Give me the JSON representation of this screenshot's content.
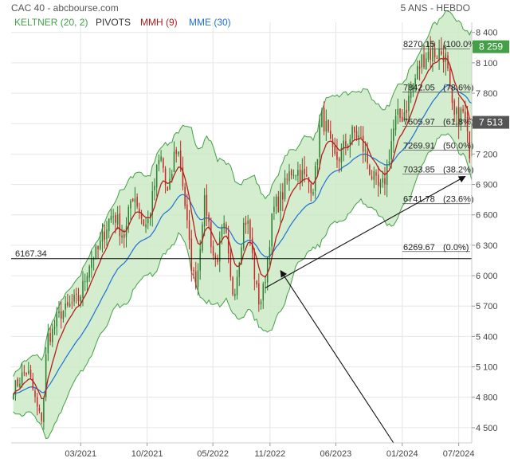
{
  "header": {
    "title": "CAC 40 - abcbourse.com",
    "period": "5 ANS - HEBDO"
  },
  "legend": [
    {
      "label": "KELTNER (20, 2)",
      "color": "#43a047"
    },
    {
      "label": "PIVOTS",
      "color": "#333333"
    },
    {
      "label": "MMH (9)",
      "color": "#b71c1c"
    },
    {
      "label": "MME (30)",
      "color": "#1e6fd9"
    }
  ],
  "colors": {
    "keltner_fill": "#cdeac6",
    "keltner_line": "#43a047",
    "candle_up": "#2e7d32",
    "candle_down": "#c62828",
    "mmh": "#b71c1c",
    "mme": "#1e6fd9",
    "price_tag": "#43a047",
    "current_tag": "#555555",
    "grid": "#e6e6e6",
    "line": "#111111"
  },
  "chart_data": {
    "type": "candlestick",
    "instrument": "CAC 40",
    "timeframe": "weekly",
    "ylim": [
      4350,
      8500
    ],
    "y_ticks": [
      4500,
      4800,
      5100,
      5400,
      5700,
      6000,
      6300,
      6600,
      6900,
      7200,
      7500,
      7800,
      8100,
      8400
    ],
    "y_tick_labels": [
      "4 500",
      "4 800",
      "5 100",
      "5 400",
      "5 700",
      "6 000",
      "6 300",
      "6 600",
      "6 900",
      "7 200",
      "7 500",
      "7 800",
      "8 100",
      "8 400"
    ],
    "x_tick_labels": [
      "03/2021",
      "10/2021",
      "05/2022",
      "11/2022",
      "06/2023",
      "01/2024",
      "07/2024"
    ],
    "x_tick_dates": [
      "2021-03-01",
      "2021-10-01",
      "2022-05-01",
      "2022-11-01",
      "2023-06-01",
      "2024-01-01",
      "2024-07-01"
    ],
    "x_range": [
      "2020-07-20",
      "2024-08-12"
    ],
    "price_path": [
      [
        "2020-07-27",
        4900
      ],
      [
        "2020-09-07",
        5050
      ],
      [
        "2020-10-26",
        4600
      ],
      [
        "2020-11-16",
        5400
      ],
      [
        "2021-01-04",
        5650
      ],
      [
        "2021-02-15",
        5750
      ],
      [
        "2021-04-12",
        6200
      ],
      [
        "2021-06-14",
        6600
      ],
      [
        "2021-07-19",
        6400
      ],
      [
        "2021-08-16",
        6800
      ],
      [
        "2021-09-27",
        6500
      ],
      [
        "2021-11-15",
        7150
      ],
      [
        "2021-12-06",
        6800
      ],
      [
        "2022-01-03",
        7250
      ],
      [
        "2022-03-07",
        5950
      ],
      [
        "2022-04-04",
        6700
      ],
      [
        "2022-05-09",
        6150
      ],
      [
        "2022-06-06",
        6450
      ],
      [
        "2022-07-04",
        5850
      ],
      [
        "2022-08-15",
        6550
      ],
      [
        "2022-09-29",
        5750
      ],
      [
        "2022-11-21",
        6700
      ],
      [
        "2023-01-16",
        7050
      ],
      [
        "2023-03-20",
        6900
      ],
      [
        "2023-04-17",
        7550
      ],
      [
        "2023-05-29",
        7150
      ],
      [
        "2023-07-31",
        7400
      ],
      [
        "2023-10-23",
        6850
      ],
      [
        "2023-12-18",
        7550
      ],
      [
        "2024-03-25",
        8200
      ],
      [
        "2024-05-13",
        8200
      ],
      [
        "2024-06-17",
        7550
      ],
      [
        "2024-07-15",
        7600
      ],
      [
        "2024-08-05",
        7250
      ],
      [
        "2024-08-12",
        7513
      ]
    ],
    "last_price": 7513,
    "last_price_label": "7 513",
    "high_price_label": "8 259",
    "pivot_level": 6167.34,
    "pivot_label": "6167.34",
    "fibonacci": [
      {
        "value": 8270.15,
        "label": "8270.15",
        "pct": "(100.0%)"
      },
      {
        "value": 7842.05,
        "label": "7842.05",
        "pct": "(78.6%)"
      },
      {
        "value": 7505.97,
        "label": "7505.97",
        "pct": "(61.8%)"
      },
      {
        "value": 7269.91,
        "label": "7269.91",
        "pct": "(50.0%)"
      },
      {
        "value": 7033.85,
        "label": "7033.85",
        "pct": "(38.2%)"
      },
      {
        "value": 6741.78,
        "label": "6741.78",
        "pct": "(23.6%)"
      },
      {
        "value": 6269.67,
        "label": "6269.67",
        "pct": "(0.0%)"
      }
    ],
    "trendline": {
      "from": [
        "2022-10-17",
        5880
      ],
      "to": [
        "2024-07-22",
        6980
      ]
    },
    "arrow": {
      "from": [
        "2023-12-04",
        4350
      ],
      "to": [
        "2022-12-05",
        6050
      ]
    }
  }
}
